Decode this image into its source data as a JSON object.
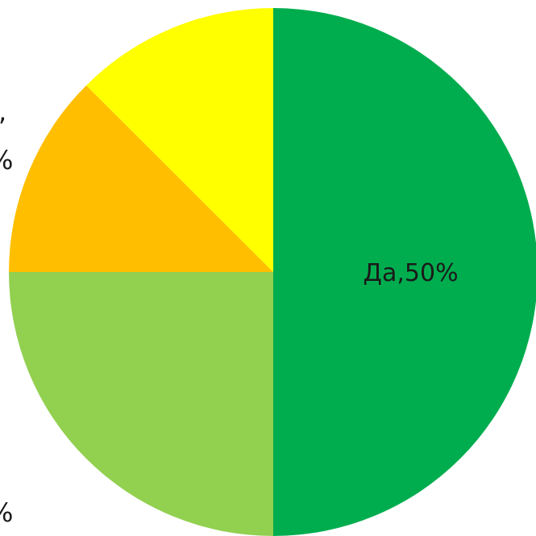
{
  "chart_data": {
    "type": "pie",
    "categories": [
      "Да",
      "",
      "",
      ""
    ],
    "values": [
      50,
      25,
      12.5,
      12.5
    ],
    "colors": [
      "#00AD4E",
      "#92D050",
      "#FFBF00",
      "#FFFF00"
    ],
    "data_labels": [
      "Да,50%",
      "",
      "",
      ""
    ],
    "start_angle_deg": 0,
    "direction": "clockwise",
    "legend": "none",
    "visible_text_fragments": [
      ",",
      "%",
      "%"
    ]
  }
}
